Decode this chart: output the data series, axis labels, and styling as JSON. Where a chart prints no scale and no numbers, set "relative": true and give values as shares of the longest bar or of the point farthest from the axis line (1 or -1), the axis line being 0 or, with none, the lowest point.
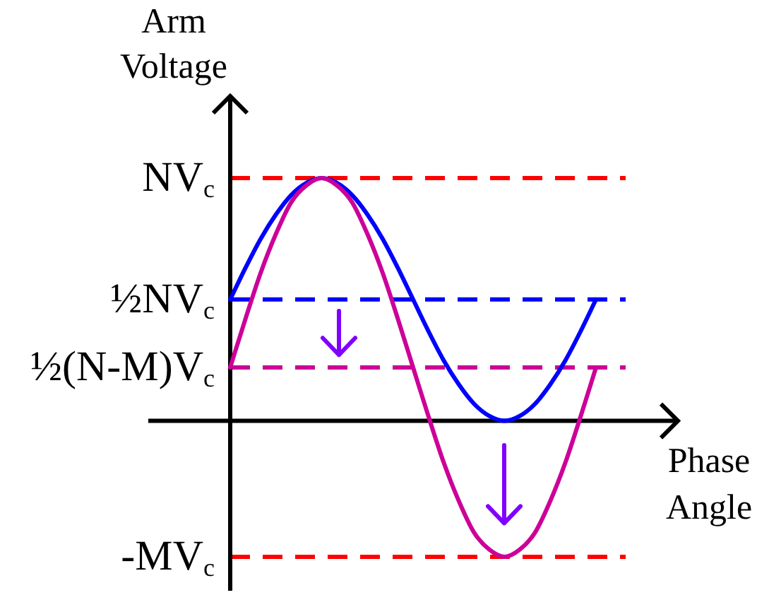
{
  "chart_data": {
    "type": "line",
    "xlabel": "Phase Angle",
    "ylabel": "Arm Voltage",
    "relative": true,
    "marker": "none",
    "line_style": "solid",
    "categories": [
      null,
      null,
      null,
      null,
      null,
      null,
      null,
      null,
      null,
      null,
      null,
      null,
      null,
      null,
      null,
      null,
      null,
      null,
      null,
      null,
      null,
      null,
      null,
      null,
      null
    ],
    "series": [
      {
        "color": "#0000ff",
        "values": [
          0.5,
          0.63,
          0.75,
          0.85,
          0.93,
          0.98,
          1,
          0.98,
          0.93,
          0.85,
          0.75,
          0.63,
          0.5,
          0.37,
          0.25,
          0.15,
          0.07,
          0.02,
          0,
          0.02,
          0.07,
          0.15,
          0.25,
          0.37,
          0.5
        ]
      },
      {
        "color": "#cc0099",
        "values": [
          0.22,
          0.42,
          0.61,
          0.77,
          0.9,
          0.97,
          1,
          0.97,
          0.9,
          0.77,
          0.61,
          0.42,
          0.22,
          0.02,
          -0.17,
          -0.33,
          -0.46,
          -0.53,
          -0.56,
          -0.53,
          -0.46,
          -0.33,
          -0.17,
          0.02,
          0.22
        ]
      }
    ],
    "ref_lines": [
      {
        "axis": "y",
        "value": 1,
        "label": "NV$_{c}$",
        "color": "#ff0000",
        "line_style": "dashed"
      },
      {
        "axis": "y",
        "value": 0.5,
        "label": "½NV$_{c}$",
        "color": "#0000ff",
        "line_style": "dashed"
      },
      {
        "axis": "y",
        "value": 0.22,
        "label": "½(N-M)V$_{c}$",
        "color": "#cc0099",
        "line_style": "dashed"
      },
      {
        "axis": "y",
        "value": -0.56,
        "label": "-MV$_{c}$",
        "color": "#ff0000",
        "line_style": "dashed"
      }
    ]
  }
}
